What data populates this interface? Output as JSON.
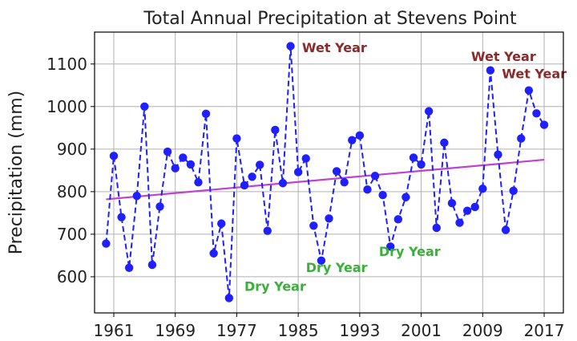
{
  "chart_data": {
    "type": "line",
    "title": "Total Annual Precipitation at Stevens Point",
    "xlabel": "",
    "ylabel": "Precipitation (mm)",
    "xlim": [
      1958.5,
      2019.5
    ],
    "ylim": [
      515,
      1175
    ],
    "x_ticks": [
      1961,
      1969,
      1977,
      1985,
      1993,
      2001,
      2009,
      2017
    ],
    "y_ticks": [
      600,
      700,
      800,
      900,
      1000,
      1100
    ],
    "grid": true,
    "colors": {
      "series": "#1f1fff",
      "trend": "#c040d0",
      "wet": "#8b2a2a",
      "dry": "#3ab03a"
    },
    "series": [
      {
        "x": [
          1960,
          1961,
          1962,
          1963,
          1964,
          1965,
          1966,
          1967,
          1968,
          1969,
          1970,
          1971,
          1972,
          1973,
          1974,
          1975,
          1976,
          1977,
          1978,
          1979,
          1980,
          1981,
          1982,
          1983,
          1984,
          1985,
          1986,
          1987,
          1988,
          1989,
          1990,
          1991,
          1992,
          1993,
          1994,
          1995,
          1996,
          1997,
          1998,
          1999,
          2000,
          2001,
          2002,
          2003,
          2004,
          2005,
          2006,
          2007,
          2008,
          2009,
          2010,
          2011,
          2012,
          2013,
          2014,
          2015,
          2016,
          2017
        ],
        "values": [
          678,
          884,
          740,
          621,
          790,
          1000,
          628,
          765,
          894,
          855,
          880,
          864,
          822,
          983,
          655,
          725,
          550,
          925,
          815,
          835,
          863,
          708,
          945,
          820,
          1142,
          846,
          878,
          720,
          638,
          737,
          848,
          822,
          921,
          932,
          805,
          837,
          792,
          671,
          735,
          787,
          880,
          864,
          989,
          715,
          915,
          773,
          727,
          755,
          764,
          807,
          1085,
          887,
          710,
          802,
          925,
          1038,
          984,
          957
        ]
      }
    ],
    "trend": {
      "x": [
        1960,
        2017
      ],
      "values": [
        782,
        875
      ]
    },
    "annotations": [
      {
        "text": "Wet Year",
        "x": 1985.5,
        "y": 1128,
        "kind": "wet"
      },
      {
        "text": "Wet Year",
        "x": 2007.5,
        "y": 1107,
        "kind": "wet"
      },
      {
        "text": "Wet Year",
        "x": 2011.5,
        "y": 1067,
        "kind": "wet"
      },
      {
        "text": "Dry Year",
        "x": 1978,
        "y": 567,
        "kind": "dry"
      },
      {
        "text": "Dry Year",
        "x": 1986,
        "y": 611,
        "kind": "dry"
      },
      {
        "text": "Dry Year",
        "x": 1995.5,
        "y": 649,
        "kind": "dry"
      }
    ]
  }
}
